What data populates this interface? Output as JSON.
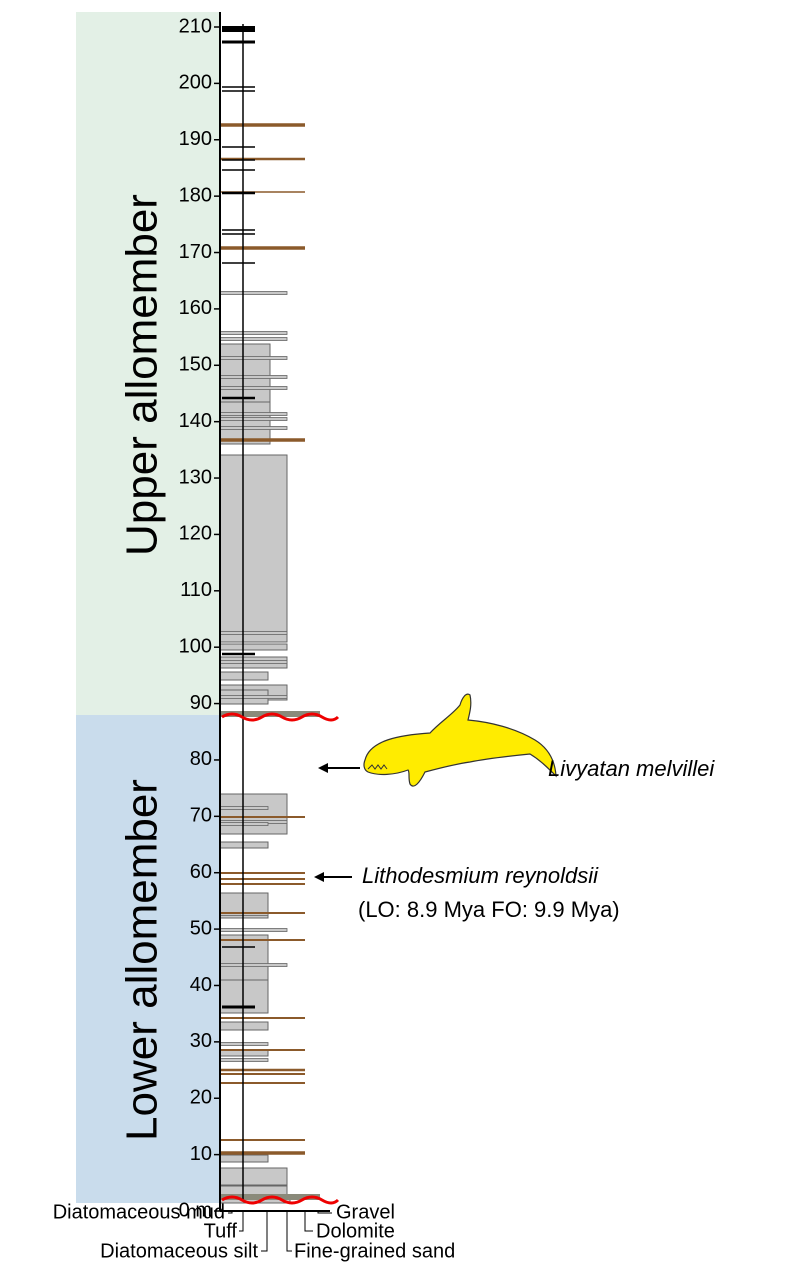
{
  "scale": {
    "ticks": [
      {
        "value": 0,
        "label": "0 m"
      },
      10,
      20,
      30,
      40,
      50,
      60,
      70,
      80,
      90,
      100,
      110,
      120,
      130,
      140,
      150,
      160,
      170,
      180,
      190,
      200,
      210
    ]
  },
  "zones": [
    {
      "label": "Upper allomember"
    },
    {
      "label": "Lower allomember"
    }
  ],
  "annotations": [
    {
      "label": "Livyatan melvillei"
    },
    {
      "label": "Lithodesmium reynoldsii",
      "detail": "(LO: 8.9 Mya FO: 9.9 Mya)"
    }
  ],
  "legend": [
    "Diatomaceous mud",
    "Tuff",
    "Diatomaceous silt",
    "Fine-grained sand",
    "Dolomite",
    "Gravel"
  ]
}
